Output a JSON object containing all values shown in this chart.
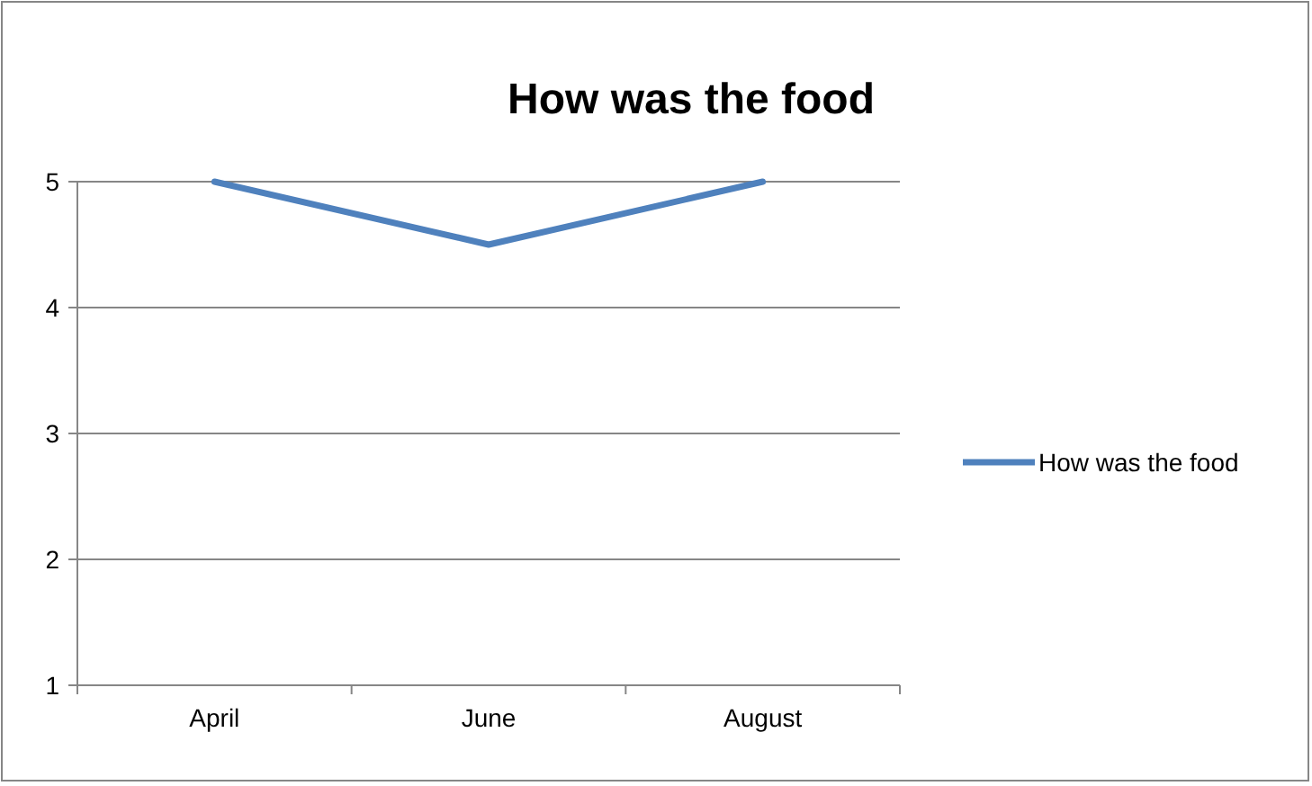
{
  "chart_data": {
    "type": "line",
    "title": "How was the food",
    "categories": [
      "April",
      "June",
      "August"
    ],
    "series": [
      {
        "name": "How was the food",
        "color": "#4f81bd",
        "values": [
          5,
          4.5,
          5
        ]
      }
    ],
    "ylim": [
      1,
      5
    ],
    "yticks": [
      1,
      2,
      3,
      4,
      5
    ],
    "grid": "y",
    "legend": "right",
    "marker": "none",
    "line_style": "solid"
  }
}
